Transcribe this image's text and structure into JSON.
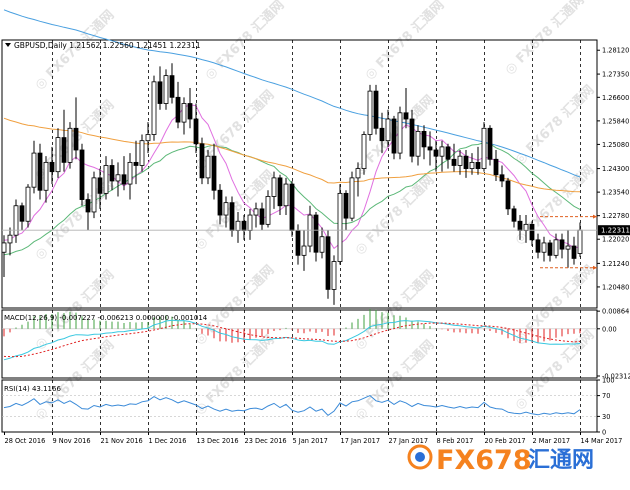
{
  "colors": {
    "background": "#ffffff",
    "frame": "#000000",
    "grid": "#000000",
    "candle_up": "#ffffff",
    "candle_down": "#000000",
    "ma_fast": "#e070e0",
    "ma_mid": "#5cb878",
    "ma_slow": "#f0a040",
    "ma_long": "#4aa0e0",
    "macd_signal": "#e02020",
    "macd_line": "#38c8e0",
    "macd_hist_up": "#40a040",
    "macd_hist_down": "#e02020",
    "rsi_line": "#3a8ad8",
    "price_label_bg": "#000000",
    "price_label_fg": "#ffffff",
    "level_lines": "#e06020",
    "watermark": "#c8c8c8",
    "brand_orange": "#f5821f",
    "brand_blue": "#2a6fd6"
  },
  "chart_data": [
    {
      "type": "candlestick",
      "title": "GBPUSD,Daily  1.21562 1.22560 1.21451 1.22311",
      "symbol": "GBPUSD",
      "timeframe": "Daily",
      "last_ohlc": {
        "open": 1.21562,
        "high": 1.2256,
        "low": 1.21451,
        "close": 1.22311
      },
      "current_price": 1.22311,
      "ylim": [
        1.198,
        1.2845
      ],
      "grid": true,
      "y_ticks": [
        1.2812,
        1.2735,
        1.266,
        1.2584,
        1.2508,
        1.243,
        1.2354,
        1.2278,
        1.2202,
        1.2124,
        1.2048
      ],
      "x_tick_labels": [
        "28 Oct 2016",
        "9 Nov 2016",
        "21 Nov 2016",
        "1 Dec 2016",
        "13 Dec 2016",
        "23 Dec 2016",
        "5 Jan 2017",
        "17 Jan 2017",
        "27 Jan 2017",
        "8 Feb 2017",
        "20 Feb 2017",
        "2 Mar 2017",
        "14 Mar 2017"
      ],
      "x_tick_bar_index": [
        0,
        8,
        16,
        24,
        32,
        40,
        48,
        56,
        64,
        72,
        80,
        88,
        96
      ],
      "level_lines": [
        1.2275,
        1.211
      ],
      "candles": [
        [
          1.216,
          1.2215,
          1.208,
          1.219
        ],
        [
          1.219,
          1.224,
          1.215,
          1.2215
        ],
        [
          1.2215,
          1.233,
          1.219,
          1.231
        ],
        [
          1.231,
          1.232,
          1.223,
          1.226
        ],
        [
          1.226,
          1.238,
          1.224,
          1.237
        ],
        [
          1.237,
          1.252,
          1.235,
          1.248
        ],
        [
          1.248,
          1.251,
          1.233,
          1.236
        ],
        [
          1.236,
          1.247,
          1.232,
          1.245
        ],
        [
          1.245,
          1.25,
          1.238,
          1.242
        ],
        [
          1.242,
          1.256,
          1.24,
          1.253
        ],
        [
          1.253,
          1.262,
          1.242,
          1.245
        ],
        [
          1.245,
          1.258,
          1.243,
          1.256
        ],
        [
          1.256,
          1.266,
          1.246,
          1.249
        ],
        [
          1.249,
          1.251,
          1.231,
          1.233
        ],
        [
          1.233,
          1.235,
          1.223,
          1.229
        ],
        [
          1.229,
          1.242,
          1.227,
          1.24
        ],
        [
          1.24,
          1.243,
          1.23,
          1.235
        ],
        [
          1.235,
          1.247,
          1.233,
          1.244
        ],
        [
          1.244,
          1.246,
          1.236,
          1.239
        ],
        [
          1.239,
          1.245,
          1.234,
          1.241
        ],
        [
          1.241,
          1.247,
          1.236,
          1.238
        ],
        [
          1.238,
          1.248,
          1.233,
          1.245
        ],
        [
          1.245,
          1.252,
          1.238,
          1.244
        ],
        [
          1.244,
          1.254,
          1.242,
          1.252
        ],
        [
          1.252,
          1.258,
          1.248,
          1.254
        ],
        [
          1.254,
          1.273,
          1.252,
          1.271
        ],
        [
          1.271,
          1.276,
          1.262,
          1.264
        ],
        [
          1.264,
          1.275,
          1.262,
          1.273
        ],
        [
          1.273,
          1.277,
          1.264,
          1.266
        ],
        [
          1.266,
          1.271,
          1.256,
          1.258
        ],
        [
          1.258,
          1.266,
          1.254,
          1.264
        ],
        [
          1.264,
          1.269,
          1.256,
          1.259
        ],
        [
          1.259,
          1.264,
          1.248,
          1.251
        ],
        [
          1.251,
          1.253,
          1.238,
          1.24
        ],
        [
          1.24,
          1.249,
          1.238,
          1.247
        ],
        [
          1.247,
          1.251,
          1.233,
          1.236
        ],
        [
          1.236,
          1.238,
          1.225,
          1.228
        ],
        [
          1.228,
          1.234,
          1.224,
          1.232
        ],
        [
          1.232,
          1.234,
          1.221,
          1.223
        ],
        [
          1.223,
          1.229,
          1.219,
          1.226
        ],
        [
          1.226,
          1.228,
          1.22,
          1.223
        ],
        [
          1.223,
          1.23,
          1.22,
          1.228
        ],
        [
          1.228,
          1.232,
          1.224,
          1.23
        ],
        [
          1.23,
          1.232,
          1.223,
          1.225
        ],
        [
          1.225,
          1.236,
          1.224,
          1.234
        ],
        [
          1.234,
          1.242,
          1.23,
          1.24
        ],
        [
          1.24,
          1.241,
          1.228,
          1.231
        ],
        [
          1.231,
          1.24,
          1.228,
          1.238
        ],
        [
          1.238,
          1.239,
          1.221,
          1.223
        ],
        [
          1.223,
          1.225,
          1.212,
          1.215
        ],
        [
          1.215,
          1.223,
          1.21,
          1.218
        ],
        [
          1.218,
          1.231,
          1.216,
          1.228
        ],
        [
          1.228,
          1.229,
          1.213,
          1.216
        ],
        [
          1.216,
          1.224,
          1.214,
          1.221
        ],
        [
          1.221,
          1.223,
          1.201,
          1.204
        ],
        [
          1.204,
          1.215,
          1.199,
          1.213
        ],
        [
          1.213,
          1.238,
          1.212,
          1.235
        ],
        [
          1.235,
          1.236,
          1.223,
          1.227
        ],
        [
          1.227,
          1.242,
          1.226,
          1.24
        ],
        [
          1.24,
          1.245,
          1.234,
          1.243
        ],
        [
          1.243,
          1.255,
          1.241,
          1.254
        ],
        [
          1.254,
          1.27,
          1.252,
          1.268
        ],
        [
          1.268,
          1.27,
          1.254,
          1.256
        ],
        [
          1.256,
          1.261,
          1.248,
          1.252
        ],
        [
          1.252,
          1.262,
          1.25,
          1.259
        ],
        [
          1.259,
          1.26,
          1.246,
          1.248
        ],
        [
          1.248,
          1.263,
          1.246,
          1.261
        ],
        [
          1.261,
          1.269,
          1.256,
          1.259
        ],
        [
          1.259,
          1.262,
          1.245,
          1.247
        ],
        [
          1.247,
          1.257,
          1.244,
          1.255
        ],
        [
          1.255,
          1.257,
          1.246,
          1.25
        ],
        [
          1.25,
          1.255,
          1.244,
          1.249
        ],
        [
          1.249,
          1.252,
          1.242,
          1.247
        ],
        [
          1.247,
          1.252,
          1.242,
          1.25
        ],
        [
          1.25,
          1.251,
          1.243,
          1.246
        ],
        [
          1.246,
          1.251,
          1.242,
          1.244
        ],
        [
          1.244,
          1.249,
          1.241,
          1.247
        ],
        [
          1.247,
          1.249,
          1.24,
          1.243
        ],
        [
          1.243,
          1.248,
          1.241,
          1.245
        ],
        [
          1.245,
          1.25,
          1.241,
          1.243
        ],
        [
          1.243,
          1.258,
          1.242,
          1.256
        ],
        [
          1.256,
          1.257,
          1.244,
          1.246
        ],
        [
          1.246,
          1.249,
          1.239,
          1.241
        ],
        [
          1.241,
          1.244,
          1.237,
          1.239
        ],
        [
          1.239,
          1.24,
          1.228,
          1.23
        ],
        [
          1.23,
          1.231,
          1.224,
          1.226
        ],
        [
          1.226,
          1.228,
          1.22,
          1.223
        ],
        [
          1.223,
          1.228,
          1.219,
          1.225
        ],
        [
          1.225,
          1.226,
          1.218,
          1.22
        ],
        [
          1.22,
          1.222,
          1.214,
          1.216
        ],
        [
          1.216,
          1.221,
          1.213,
          1.219
        ],
        [
          1.219,
          1.22,
          1.213,
          1.215
        ],
        [
          1.215,
          1.222,
          1.214,
          1.22
        ],
        [
          1.22,
          1.222,
          1.214,
          1.217
        ],
        [
          1.217,
          1.223,
          1.211,
          1.218
        ],
        [
          1.218,
          1.221,
          1.212,
          1.214
        ],
        [
          1.2156,
          1.2256,
          1.2145,
          1.2231
        ]
      ]
    },
    {
      "type": "line",
      "title": "MACD(12,26,9) -0.007227 -0.006213 0.000000 -0.001014",
      "ylim": [
        -0.0241,
        0.0092
      ],
      "y_ticks": [
        0.008641,
        0.0,
        -0.023124
      ],
      "y_tick_labels": [
        "0.008641",
        "0.00",
        "-0.023124"
      ],
      "series": [
        {
          "name": "MACD",
          "values": [
            -0.0152,
            -0.0144,
            -0.0133,
            -0.0126,
            -0.0114,
            -0.0096,
            -0.0088,
            -0.0076,
            -0.0068,
            -0.0055,
            -0.0048,
            -0.0036,
            -0.0029,
            -0.003,
            -0.0032,
            -0.0027,
            -0.0026,
            -0.0021,
            -0.0019,
            -0.0015,
            -0.0014,
            -0.0009,
            -0.0006,
            -0.0001,
            0.0003,
            0.0019,
            0.0027,
            0.0038,
            0.0042,
            0.0039,
            0.004,
            0.0035,
            0.0026,
            0.0012,
            0.0004,
            -0.0007,
            -0.0021,
            -0.0028,
            -0.0039,
            -0.0045,
            -0.0051,
            -0.0053,
            -0.0054,
            -0.0057,
            -0.0054,
            -0.0048,
            -0.0047,
            -0.0042,
            -0.0046,
            -0.0055,
            -0.0059,
            -0.0056,
            -0.0061,
            -0.0061,
            -0.0074,
            -0.0076,
            -0.0063,
            -0.0058,
            -0.0044,
            -0.003,
            -0.0013,
            0.001,
            0.0018,
            0.0022,
            0.003,
            0.0031,
            0.0038,
            0.004,
            0.0037,
            0.0039,
            0.0037,
            0.0034,
            0.0029,
            0.0027,
            0.0022,
            0.0017,
            0.0015,
            0.001,
            0.0008,
            0.0004,
            0.0012,
            0.0008,
            0.0001,
            -0.0006,
            -0.002,
            -0.0033,
            -0.0046,
            -0.0052,
            -0.006,
            -0.0069,
            -0.0072,
            -0.0076,
            -0.0075,
            -0.0076,
            -0.0074,
            -0.0075,
            -0.0072
          ]
        },
        {
          "name": "Signal",
          "values": [
            -0.0135,
            -0.0136,
            -0.0136,
            -0.0135,
            -0.013,
            -0.0124,
            -0.0117,
            -0.0109,
            -0.0101,
            -0.0092,
            -0.0083,
            -0.0074,
            -0.0065,
            -0.0058,
            -0.0053,
            -0.0048,
            -0.0044,
            -0.0039,
            -0.0035,
            -0.0031,
            -0.0027,
            -0.0024,
            -0.002,
            -0.0016,
            -0.0012,
            -0.0006,
            0.0001,
            0.0008,
            0.0015,
            0.0019,
            0.0023,
            0.0025,
            0.0025,
            0.0023,
            0.0019,
            0.0014,
            0.0007,
            0.0,
            -0.0008,
            -0.0015,
            -0.0022,
            -0.0029,
            -0.0034,
            -0.0039,
            -0.0042,
            -0.0043,
            -0.0044,
            -0.0044,
            -0.0044,
            -0.0046,
            -0.0049,
            -0.005,
            -0.0052,
            -0.0054,
            -0.0058,
            -0.0061,
            -0.0062,
            -0.0061,
            -0.0058,
            -0.0052,
            -0.0044,
            -0.0034,
            -0.0024,
            -0.0015,
            -0.0006,
            0.0001,
            0.0009,
            0.0015,
            0.0019,
            0.0023,
            0.0026,
            0.0028,
            0.0028,
            0.0028,
            0.0027,
            0.0025,
            0.0023,
            0.002,
            0.0018,
            0.0015,
            0.0014,
            0.0013,
            0.001,
            0.0007,
            0.0001,
            -0.0006,
            -0.0014,
            -0.0021,
            -0.0029,
            -0.0037,
            -0.0044,
            -0.005,
            -0.0055,
            -0.0059,
            -0.0062,
            -0.0064,
            -0.0062
          ]
        }
      ]
    },
    {
      "type": "line",
      "title": "RSI(14) 43.1166",
      "ylim": [
        0,
        100
      ],
      "y_ticks": [
        100,
        70,
        30,
        0
      ],
      "series": [
        {
          "name": "RSI",
          "values": [
            47,
            49,
            55,
            51,
            57,
            64,
            53,
            58,
            56,
            62,
            55,
            60,
            53,
            45,
            44,
            51,
            48,
            53,
            50,
            52,
            50,
            54,
            53,
            58,
            60,
            68,
            62,
            66,
            62,
            56,
            60,
            56,
            52,
            45,
            50,
            44,
            40,
            44,
            40,
            42,
            41,
            45,
            46,
            43,
            50,
            55,
            47,
            53,
            42,
            38,
            41,
            48,
            40,
            44,
            32,
            40,
            56,
            50,
            58,
            60,
            65,
            70,
            60,
            57,
            61,
            53,
            60,
            56,
            49,
            55,
            51,
            50,
            48,
            51,
            48,
            46,
            49,
            46,
            48,
            47,
            57,
            48,
            45,
            44,
            38,
            36,
            35,
            38,
            35,
            33,
            36,
            34,
            37,
            35,
            37,
            35,
            43
          ]
        }
      ]
    }
  ],
  "watermark": {
    "text": "FX678",
    "brand_cn": "汇通网"
  }
}
